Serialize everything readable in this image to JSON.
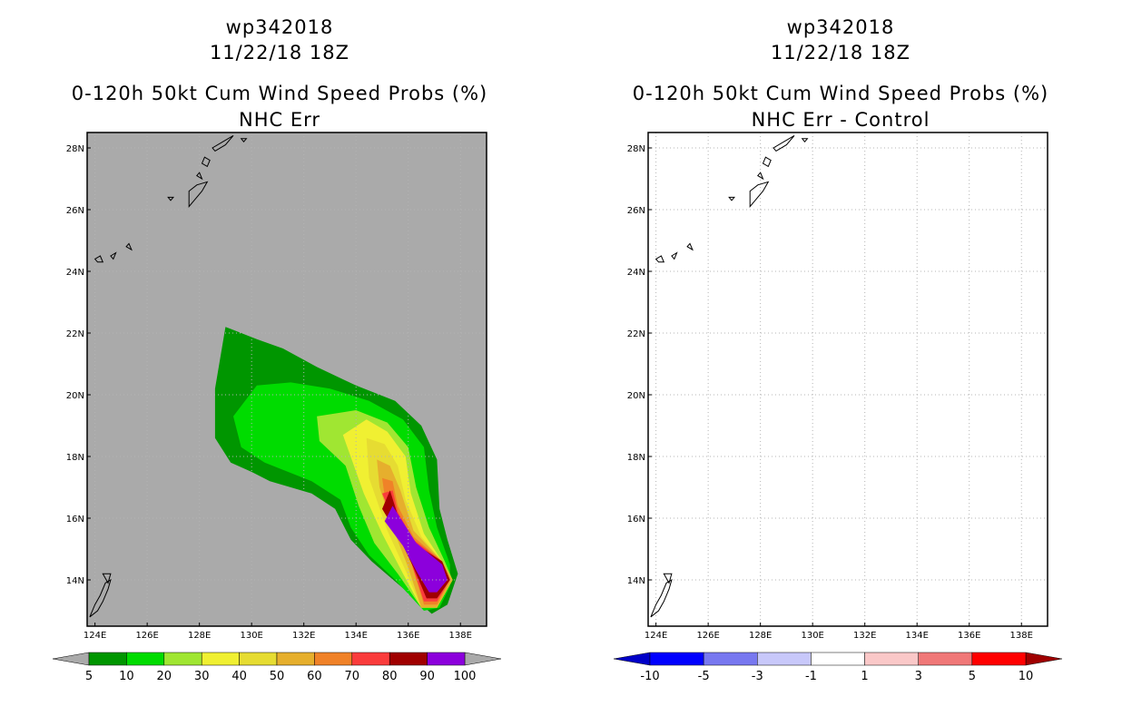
{
  "left": {
    "title1": "wp342018",
    "title2": "11/22/18 18Z",
    "title3": "0-120h 50kt Cum Wind Speed Probs (%)",
    "title4": "NHC Err"
  },
  "right": {
    "title1": "wp342018",
    "title2": "11/22/18 18Z",
    "title3": "0-120h 50kt Cum Wind Speed Probs (%)",
    "title4": "NHC Err - Control"
  },
  "chart_data": [
    {
      "type": "heatmap",
      "title": "0-120h 50kt Cum Wind Speed Probs (%) NHC Err",
      "storm": "wp342018",
      "time": "11/22/18 18Z",
      "xlim": [
        123.7,
        139.0
      ],
      "ylim": [
        12.5,
        28.5
      ],
      "xticks": [
        "124E",
        "126E",
        "128E",
        "130E",
        "132E",
        "134E",
        "136E",
        "138E"
      ],
      "yticks": [
        "14N",
        "16N",
        "18N",
        "20N",
        "22N",
        "24N",
        "26N",
        "28N"
      ],
      "background": "#aaaaaa",
      "levels": [
        5,
        10,
        20,
        30,
        40,
        50,
        60,
        70,
        80,
        90,
        100
      ],
      "level_labels": [
        "5",
        "10",
        "20",
        "30",
        "40",
        "50",
        "60",
        "70",
        "80",
        "90",
        "100"
      ],
      "colors": [
        "#009600",
        "#00dc00",
        "#a0e632",
        "#f0f032",
        "#e6dc32",
        "#e6af2d",
        "#f08228",
        "#fa3c3c",
        "#a00000",
        "#8c00dc"
      ],
      "contours": [
        {
          "level": 5,
          "points": [
            [
              129.0,
              22.2
            ],
            [
              130.2,
              21.8
            ],
            [
              131.2,
              21.5
            ],
            [
              132.5,
              20.9
            ],
            [
              134.0,
              20.3
            ],
            [
              135.5,
              19.8
            ],
            [
              136.5,
              19.0
            ],
            [
              137.1,
              17.9
            ],
            [
              137.2,
              16.3
            ],
            [
              137.5,
              15.3
            ],
            [
              137.9,
              14.2
            ],
            [
              137.5,
              13.2
            ],
            [
              136.9,
              12.9
            ],
            [
              135.7,
              13.8
            ],
            [
              134.6,
              14.6
            ],
            [
              133.8,
              15.3
            ],
            [
              133.2,
              16.3
            ],
            [
              132.3,
              16.8
            ],
            [
              130.7,
              17.2
            ],
            [
              130.0,
              17.5
            ],
            [
              129.2,
              17.8
            ],
            [
              128.6,
              18.6
            ],
            [
              128.6,
              20.2
            ]
          ]
        },
        {
          "level": 10,
          "points": [
            [
              130.2,
              20.3
            ],
            [
              131.5,
              20.4
            ],
            [
              133.0,
              20.2
            ],
            [
              134.5,
              19.8
            ],
            [
              135.8,
              19.2
            ],
            [
              136.6,
              18.3
            ],
            [
              136.8,
              16.9
            ],
            [
              137.1,
              15.7
            ],
            [
              137.6,
              14.5
            ],
            [
              137.6,
              13.8
            ],
            [
              137.2,
              13.1
            ],
            [
              136.6,
              13.0
            ],
            [
              135.5,
              14.0
            ],
            [
              134.5,
              14.8
            ],
            [
              133.8,
              15.7
            ],
            [
              133.4,
              16.6
            ],
            [
              132.3,
              17.2
            ],
            [
              130.5,
              17.8
            ],
            [
              129.6,
              18.3
            ],
            [
              129.3,
              19.3
            ]
          ]
        },
        {
          "level": 20,
          "points": [
            [
              132.5,
              19.3
            ],
            [
              134.0,
              19.5
            ],
            [
              135.2,
              19.1
            ],
            [
              136.0,
              18.3
            ],
            [
              136.3,
              17.0
            ],
            [
              136.8,
              15.7
            ],
            [
              137.4,
              14.6
            ],
            [
              137.7,
              14.0
            ],
            [
              137.1,
              13.1
            ],
            [
              136.5,
              13.1
            ],
            [
              135.6,
              14.2
            ],
            [
              134.7,
              15.2
            ],
            [
              134.1,
              16.4
            ],
            [
              133.6,
              17.7
            ],
            [
              132.6,
              18.5
            ]
          ]
        },
        {
          "level": 30,
          "points": [
            [
              133.5,
              18.7
            ],
            [
              134.4,
              19.2
            ],
            [
              135.2,
              18.8
            ],
            [
              135.9,
              18.0
            ],
            [
              136.1,
              16.8
            ],
            [
              136.6,
              15.5
            ],
            [
              137.3,
              14.6
            ],
            [
              137.7,
              14.0
            ],
            [
              137.1,
              13.1
            ],
            [
              136.5,
              13.1
            ],
            [
              135.8,
              14.2
            ],
            [
              135.0,
              15.5
            ],
            [
              134.3,
              16.8
            ]
          ]
        },
        {
          "level": 40,
          "points": [
            [
              134.4,
              18.6
            ],
            [
              135.1,
              18.4
            ],
            [
              135.6,
              17.7
            ],
            [
              135.9,
              16.6
            ],
            [
              136.5,
              15.4
            ],
            [
              137.3,
              14.6
            ],
            [
              137.7,
              14.0
            ],
            [
              137.1,
              13.1
            ],
            [
              136.5,
              13.1
            ],
            [
              135.9,
              14.3
            ],
            [
              135.2,
              15.6
            ],
            [
              134.5,
              17.3
            ]
          ]
        },
        {
          "level": 50,
          "points": [
            [
              134.8,
              17.9
            ],
            [
              135.3,
              17.7
            ],
            [
              135.7,
              16.9
            ],
            [
              136.2,
              15.6
            ],
            [
              137.3,
              14.6
            ],
            [
              137.7,
              14.0
            ],
            [
              137.1,
              13.1
            ],
            [
              136.5,
              13.1
            ],
            [
              136.0,
              14.4
            ],
            [
              135.4,
              15.7
            ],
            [
              134.9,
              17.0
            ]
          ]
        },
        {
          "level": 60,
          "points": [
            [
              135.0,
              17.3
            ],
            [
              135.4,
              17.2
            ],
            [
              135.6,
              16.4
            ],
            [
              136.2,
              15.4
            ],
            [
              137.3,
              14.6
            ],
            [
              137.6,
              14.0
            ],
            [
              137.1,
              13.2
            ],
            [
              136.6,
              13.2
            ],
            [
              136.1,
              14.6
            ],
            [
              135.5,
              15.8
            ],
            [
              135.1,
              16.7
            ]
          ]
        },
        {
          "level": 70,
          "points": [
            [
              135.0,
              16.8
            ],
            [
              135.4,
              16.9
            ],
            [
              135.6,
              16.2
            ],
            [
              136.2,
              15.3
            ],
            [
              137.3,
              14.6
            ],
            [
              137.6,
              14.0
            ],
            [
              137.1,
              13.3
            ],
            [
              136.6,
              13.3
            ],
            [
              136.1,
              14.6
            ],
            [
              135.6,
              15.6
            ]
          ]
        },
        {
          "level": 80,
          "points": [
            [
              135.0,
              16.3
            ],
            [
              135.3,
              16.9
            ],
            [
              135.6,
              16.1
            ],
            [
              136.2,
              15.2
            ],
            [
              137.3,
              14.6
            ],
            [
              137.6,
              14.0
            ],
            [
              137.1,
              13.4
            ],
            [
              136.7,
              13.4
            ],
            [
              136.2,
              14.4
            ],
            [
              135.7,
              15.3
            ]
          ]
        },
        {
          "level": 90,
          "points": [
            [
              135.1,
              15.9
            ],
            [
              135.4,
              16.4
            ],
            [
              136.3,
              15.2
            ],
            [
              137.3,
              14.5
            ],
            [
              137.5,
              14.0
            ],
            [
              137.1,
              13.6
            ],
            [
              136.8,
              13.6
            ],
            [
              136.3,
              14.3
            ],
            [
              135.8,
              15.1
            ]
          ]
        }
      ]
    },
    {
      "type": "heatmap",
      "title": "0-120h 50kt Cum Wind Speed Probs (%) NHC Err - Control",
      "storm": "wp342018",
      "time": "11/22/18 18Z",
      "xlim": [
        123.7,
        139.0
      ],
      "ylim": [
        12.5,
        28.5
      ],
      "xticks": [
        "124E",
        "126E",
        "128E",
        "130E",
        "132E",
        "134E",
        "136E",
        "138E"
      ],
      "yticks": [
        "14N",
        "16N",
        "18N",
        "20N",
        "22N",
        "24N",
        "26N",
        "28N"
      ],
      "grid": true,
      "background": "#ffffff",
      "levels": [
        -10,
        -5,
        -3,
        -1,
        1,
        3,
        5,
        10
      ],
      "level_labels": [
        "-10",
        "-5",
        "-3",
        "-1",
        "1",
        "3",
        "5",
        "10"
      ],
      "colors": [
        "#0000c8",
        "#0000ff",
        "#7878f0",
        "#c8c8fa",
        "#ffffff",
        "#fac8c8",
        "#f07878",
        "#ff0000",
        "#a00000"
      ],
      "contours": []
    }
  ],
  "coastlines": {
    "islands": [
      [
        [
          128.6,
          27.9
        ],
        [
          129.0,
          28.1
        ],
        [
          129.3,
          28.4
        ],
        [
          128.9,
          28.2
        ],
        [
          128.5,
          28.0
        ]
      ],
      [
        [
          129.6,
          28.3
        ],
        [
          129.8,
          28.3
        ],
        [
          129.7,
          28.2
        ]
      ],
      [
        [
          128.2,
          27.7
        ],
        [
          128.4,
          27.6
        ],
        [
          128.3,
          27.4
        ],
        [
          128.1,
          27.5
        ]
      ],
      [
        [
          127.9,
          27.1
        ],
        [
          128.0,
          27.2
        ],
        [
          128.1,
          27.0
        ]
      ],
      [
        [
          127.6,
          26.6
        ],
        [
          127.9,
          26.8
        ],
        [
          128.3,
          26.9
        ],
        [
          128.1,
          26.6
        ],
        [
          127.8,
          26.3
        ],
        [
          127.6,
          26.1
        ],
        [
          127.6,
          26.4
        ]
      ],
      [
        [
          126.8,
          26.4
        ],
        [
          127.0,
          26.4
        ],
        [
          126.9,
          26.3
        ]
      ],
      [
        [
          124.0,
          24.4
        ],
        [
          124.2,
          24.5
        ],
        [
          124.3,
          24.3
        ],
        [
          124.1,
          24.3
        ]
      ],
      [
        [
          124.6,
          24.5
        ],
        [
          124.8,
          24.6
        ],
        [
          124.7,
          24.4
        ]
      ],
      [
        [
          125.2,
          24.8
        ],
        [
          125.4,
          24.7
        ],
        [
          125.3,
          24.9
        ]
      ],
      [
        [
          124.0,
          13.2
        ],
        [
          124.2,
          13.5
        ],
        [
          124.4,
          13.9
        ],
        [
          124.6,
          14.0
        ],
        [
          124.5,
          13.7
        ],
        [
          124.3,
          13.3
        ],
        [
          124.1,
          13.0
        ],
        [
          123.8,
          12.8
        ]
      ],
      [
        [
          124.3,
          14.2
        ],
        [
          124.6,
          14.2
        ],
        [
          124.5,
          13.9
        ]
      ]
    ]
  }
}
